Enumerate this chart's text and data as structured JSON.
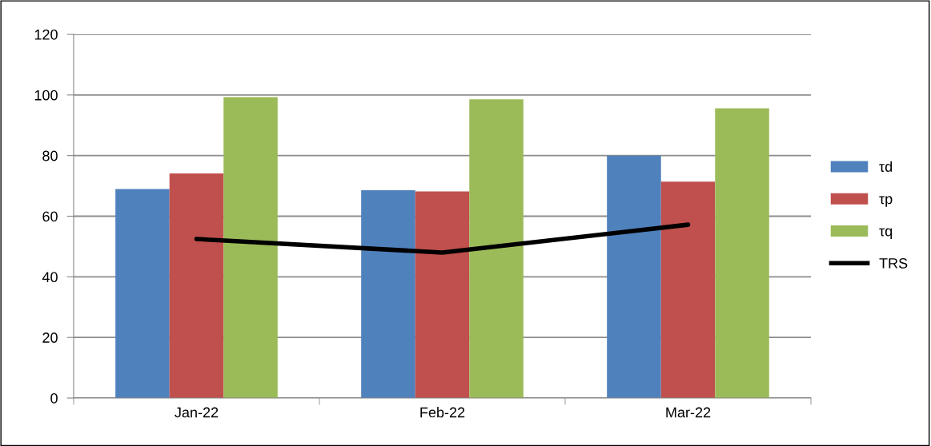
{
  "chart_data": {
    "type": "bar",
    "categories": [
      "Jan-22",
      "Feb-22",
      "Mar-22"
    ],
    "series": [
      {
        "name": "τd",
        "color": "#4f81bd",
        "values": [
          69.0,
          68.6,
          80.0
        ]
      },
      {
        "name": "τp",
        "color": "#c0504d",
        "values": [
          74.1,
          68.2,
          71.4
        ]
      },
      {
        "name": "τq",
        "color": "#9bbb59",
        "values": [
          99.3,
          98.6,
          95.6
        ]
      },
      {
        "name": "TRS",
        "type": "line",
        "color": "#000000",
        "values": [
          52.5,
          48.0,
          57.2
        ]
      }
    ],
    "ylim": [
      0,
      120
    ],
    "yticks": [
      0,
      20,
      40,
      60,
      80,
      100,
      120
    ],
    "grid": "y",
    "legend": "right",
    "marker": "none",
    "line_style": "solid"
  }
}
